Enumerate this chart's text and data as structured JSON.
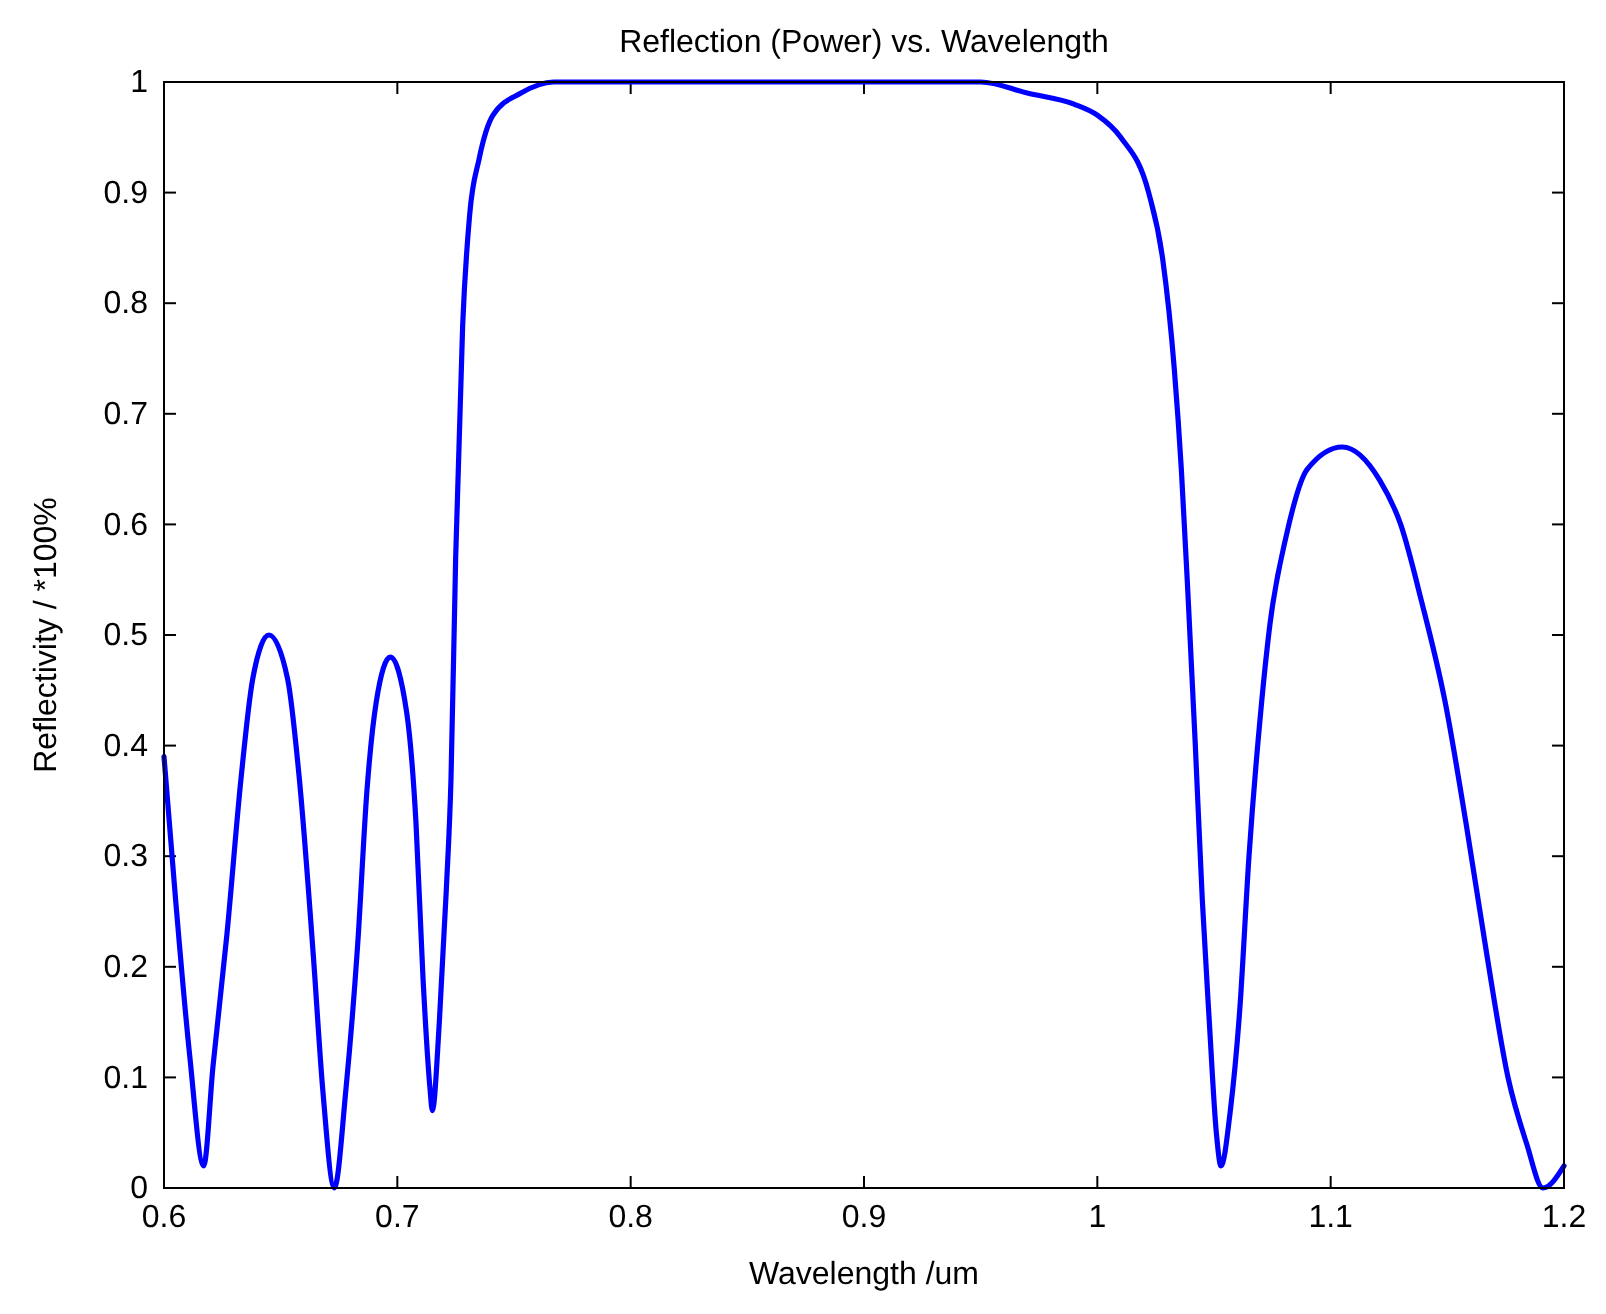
{
  "chart_data": {
    "type": "line",
    "title": "Reflection (Power) vs. Wavelength",
    "xlabel": "Wavelength /um",
    "ylabel": "Reflectivity / *100%",
    "xlim": [
      0.6,
      1.2
    ],
    "ylim": [
      0,
      1
    ],
    "xticks": [
      0.6,
      0.7,
      0.8,
      0.9,
      1,
      1.1,
      1.2
    ],
    "yticks": [
      0,
      0.1,
      0.2,
      0.3,
      0.4,
      0.5,
      0.6,
      0.7,
      0.8,
      0.9,
      1
    ],
    "marker": "none",
    "line_style": "solid",
    "series": [
      {
        "color": "#0000ff",
        "x": [
          0.6,
          0.605,
          0.611,
          0.617,
          0.621,
          0.627,
          0.633,
          0.638,
          0.645,
          0.653,
          0.658,
          0.664,
          0.668,
          0.673,
          0.678,
          0.683,
          0.687,
          0.691,
          0.697,
          0.704,
          0.708,
          0.711,
          0.714,
          0.715,
          0.718,
          0.721,
          0.723,
          0.725,
          0.728,
          0.731,
          0.735,
          0.741,
          0.753,
          0.767,
          0.781,
          0.85,
          0.95,
          0.97,
          0.99,
          1.0,
          1.01,
          1.022,
          1.028,
          1.033,
          1.036,
          1.039,
          1.042,
          1.045,
          1.048,
          1.051,
          1.053,
          1.057,
          1.061,
          1.065,
          1.07,
          1.074,
          1.081,
          1.09,
          1.105,
          1.121,
          1.13,
          1.139,
          1.149,
          1.158,
          1.167,
          1.176,
          1.184,
          1.191,
          1.2
        ],
        "values": [
          0.39,
          0.26,
          0.12,
          0.02,
          0.11,
          0.23,
          0.37,
          0.46,
          0.5,
          0.46,
          0.37,
          0.21,
          0.09,
          0.0,
          0.09,
          0.22,
          0.36,
          0.44,
          0.48,
          0.43,
          0.33,
          0.19,
          0.09,
          0.07,
          0.15,
          0.27,
          0.37,
          0.57,
          0.78,
          0.88,
          0.93,
          0.97,
          0.99,
          1.0,
          1.0,
          1.0,
          1.0,
          0.99,
          0.98,
          0.97,
          0.95,
          0.9,
          0.84,
          0.74,
          0.65,
          0.53,
          0.4,
          0.26,
          0.15,
          0.05,
          0.02,
          0.07,
          0.16,
          0.3,
          0.43,
          0.51,
          0.59,
          0.65,
          0.67,
          0.64,
          0.6,
          0.53,
          0.44,
          0.33,
          0.21,
          0.1,
          0.04,
          0.0,
          0.02
        ]
      }
    ]
  }
}
